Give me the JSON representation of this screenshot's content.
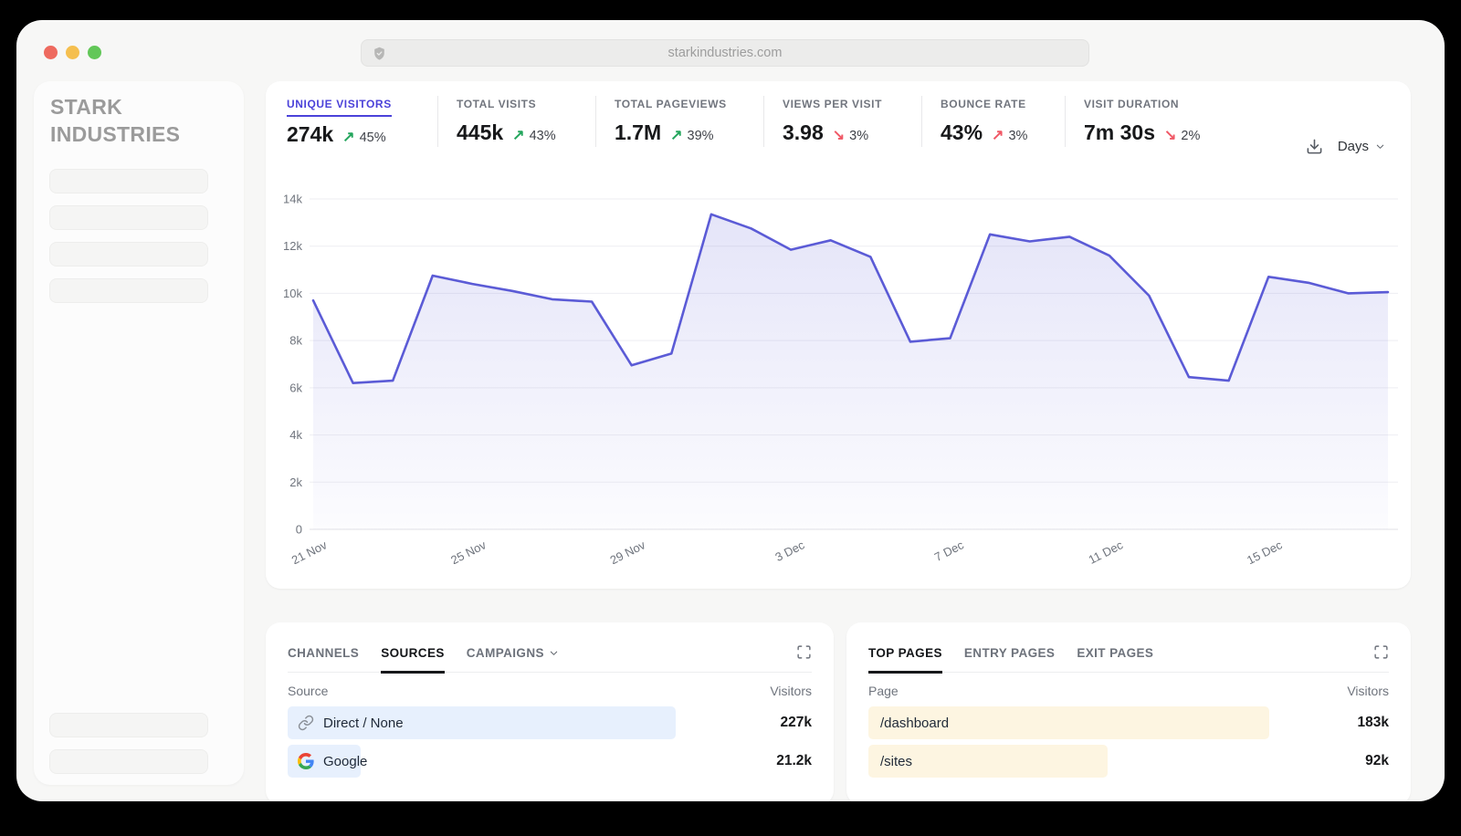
{
  "browser": {
    "url": "starkindustries.com",
    "shield_icon": "shield-icon"
  },
  "sidebar": {
    "brand": "STARK INDUSTRIES"
  },
  "stats": {
    "items": [
      {
        "label": "UNIQUE VISITORS",
        "value": "274k",
        "arrow": "↗",
        "arrow_color": "#23a55c",
        "delta": "45%",
        "active": true
      },
      {
        "label": "TOTAL VISITS",
        "value": "445k",
        "arrow": "↗",
        "arrow_color": "#23a55c",
        "delta": "43%"
      },
      {
        "label": "TOTAL PAGEVIEWS",
        "value": "1.7M",
        "arrow": "↗",
        "arrow_color": "#23a55c",
        "delta": "39%"
      },
      {
        "label": "VIEWS PER VISIT",
        "value": "3.98",
        "arrow": "↘",
        "arrow_color": "#f05866",
        "delta": "3%"
      },
      {
        "label": "BOUNCE RATE",
        "value": "43%",
        "arrow": "↗",
        "arrow_color": "#f05866",
        "delta": "3%"
      },
      {
        "label": "VISIT DURATION",
        "value": "7m 30s",
        "arrow": "↘",
        "arrow_color": "#f05866",
        "delta": "2%"
      }
    ]
  },
  "controls": {
    "interval": "Days",
    "download_icon": "download-icon",
    "chevron_icon": "chevron-down-icon"
  },
  "chart_data": {
    "type": "area",
    "series_name": "Unique Visitors",
    "x": [
      "21 Nov",
      "22 Nov",
      "23 Nov",
      "24 Nov",
      "25 Nov",
      "26 Nov",
      "27 Nov",
      "28 Nov",
      "29 Nov",
      "30 Nov",
      "1 Dec",
      "2 Dec",
      "3 Dec",
      "4 Dec",
      "5 Dec",
      "6 Dec",
      "7 Dec",
      "8 Dec",
      "9 Dec",
      "10 Dec",
      "11 Dec",
      "12 Dec",
      "13 Dec",
      "14 Dec",
      "15 Dec",
      "16 Dec",
      "17 Dec",
      "18 Dec"
    ],
    "values": [
      9700,
      6200,
      6300,
      10750,
      10400,
      10100,
      9750,
      9650,
      6950,
      7450,
      13350,
      12750,
      11850,
      12250,
      11550,
      7950,
      8100,
      12500,
      12200,
      12400,
      11600,
      9900,
      6450,
      6300,
      10700,
      10450,
      10000,
      10050
    ],
    "ylim": [
      0,
      14000
    ],
    "ytick_values": [
      0,
      2000,
      4000,
      6000,
      8000,
      10000,
      12000,
      14000
    ],
    "ytick_labels": [
      "0",
      "2k",
      "4k",
      "6k",
      "8k",
      "10k",
      "12k",
      "14k"
    ],
    "xtick_indices": [
      0,
      4,
      8,
      12,
      16,
      20,
      24
    ],
    "grid": "horizontal",
    "legend": "none",
    "line_color": "#5b5bd6",
    "fill_top": "rgba(91,91,214,0.16)",
    "fill_bottom": "rgba(91,91,214,0.02)",
    "axis_text_color": "#6f747d"
  },
  "sources_panel": {
    "tabs": [
      {
        "label": "CHANNELS"
      },
      {
        "label": "SOURCES",
        "active": true
      },
      {
        "label": "CAMPAIGNS",
        "chevron_icon": "chevron-down-icon"
      }
    ],
    "expand_icon": "expand-icon",
    "columns": {
      "left": "Source",
      "right": "Visitors"
    },
    "bar_color": "#e7f0fd",
    "rows": [
      {
        "icon": "link-icon",
        "label": "Direct / None",
        "value": "227k",
        "bar_pct": 74
      },
      {
        "icon": "google-icon",
        "label": "Google",
        "value": "21.2k",
        "bar_pct": 14
      }
    ]
  },
  "pages_panel": {
    "tabs": [
      {
        "label": "TOP PAGES",
        "active": true
      },
      {
        "label": "ENTRY PAGES"
      },
      {
        "label": "EXIT PAGES"
      }
    ],
    "expand_icon": "expand-icon",
    "columns": {
      "left": "Page",
      "right": "Visitors"
    },
    "bar_color": "#fdf5e1",
    "rows": [
      {
        "label": "/dashboard",
        "value": "183k",
        "bar_pct": 77
      },
      {
        "label": "/sites",
        "value": "92k",
        "bar_pct": 46
      }
    ]
  }
}
